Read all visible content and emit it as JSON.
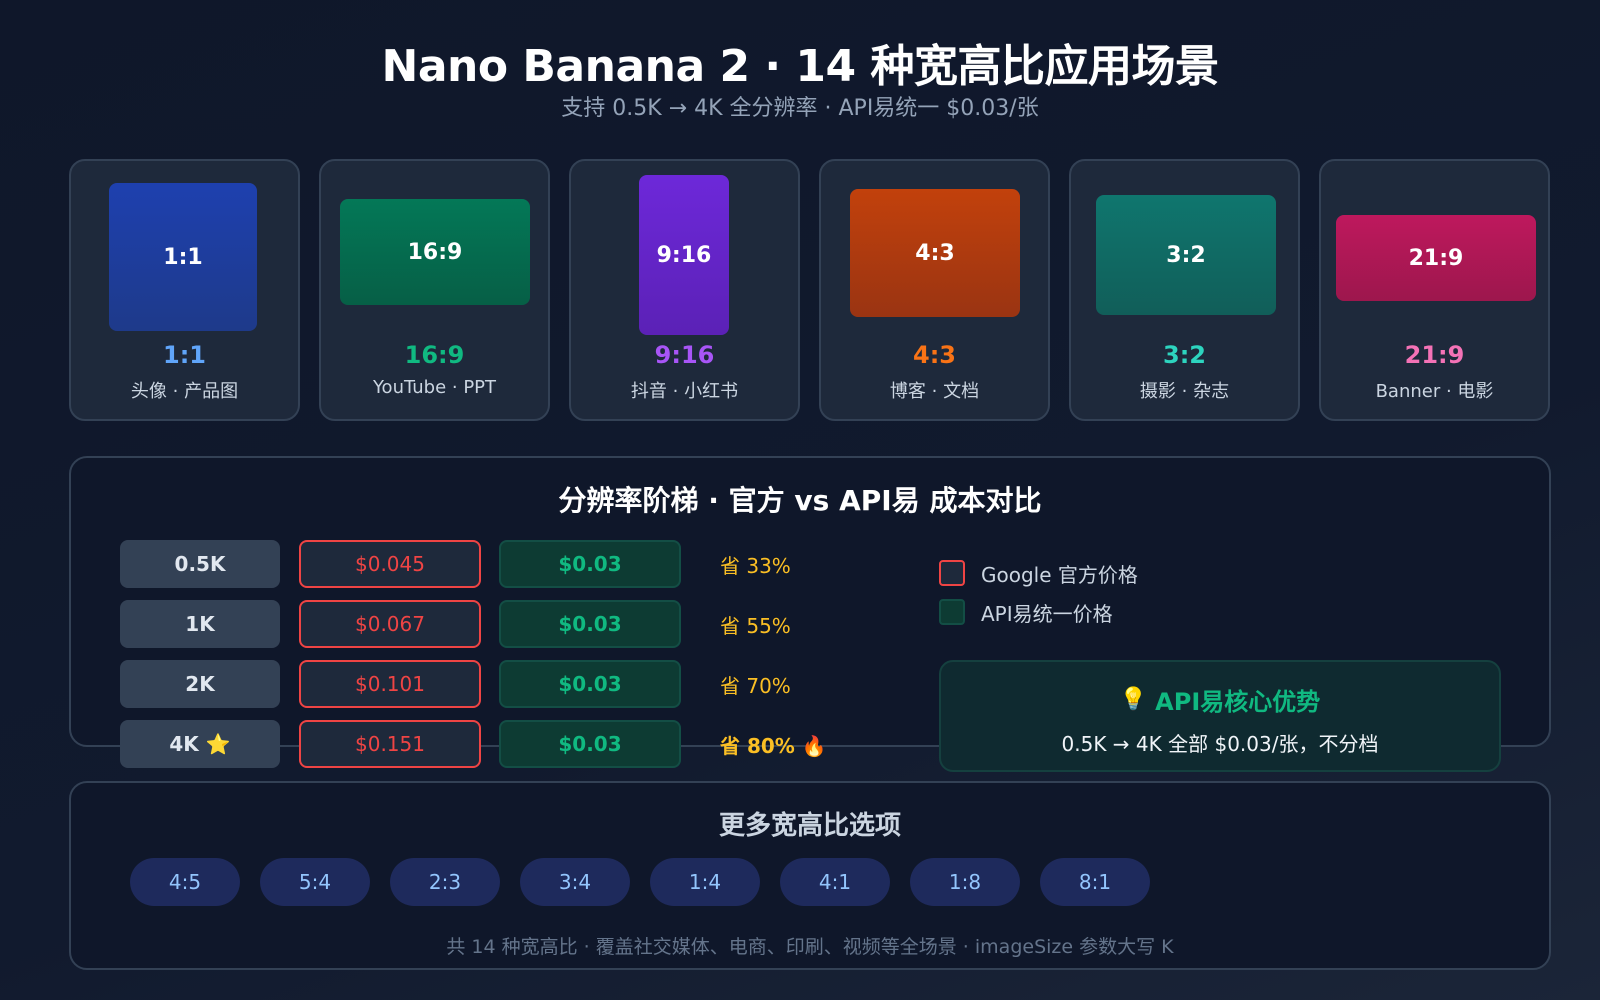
{
  "header": {
    "title": "Nano Banana 2 · 14 种宽高比应用场景",
    "subtitle": "支持 0.5K → 4K 全分辨率 · API易统一 $0.03/张"
  },
  "ratio_cards": [
    {
      "shape_label": "1:1",
      "ratio": "1:1",
      "use": "头像 · 产品图",
      "color": "#60a5fa",
      "fill": "#1e3a8a"
    },
    {
      "shape_label": "16:9",
      "ratio": "16:9",
      "use": "YouTube · PPT",
      "color": "#10b981",
      "fill": "#047857"
    },
    {
      "shape_label": "9:16",
      "ratio": "9:16",
      "use": "抖音 · 小红书",
      "color": "#a855f7",
      "fill": "#6d28d9"
    },
    {
      "shape_label": "4:3",
      "ratio": "4:3",
      "use": "博客 · 文档",
      "color": "#f97316",
      "fill": "#c2410c"
    },
    {
      "shape_label": "3:2",
      "ratio": "3:2",
      "use": "摄影 · 杂志",
      "color": "#2dd4bf",
      "fill": "#0f766e"
    },
    {
      "shape_label": "21:9",
      "ratio": "21:9",
      "use": "Banner · 电影",
      "color": "#f472b6",
      "fill": "#be185d"
    }
  ],
  "pricing": {
    "title": "分辨率阶梯 · 官方 vs API易 成本对比",
    "rows": [
      {
        "resolution": "0.5K",
        "google_price": "$0.045",
        "api_price": "$0.03",
        "saving": "省 33%"
      },
      {
        "resolution": "1K",
        "google_price": "$0.067",
        "api_price": "$0.03",
        "saving": "省 55%"
      },
      {
        "resolution": "2K",
        "google_price": "$0.101",
        "api_price": "$0.03",
        "saving": "省 70%"
      },
      {
        "resolution": "4K ⭐",
        "google_price": "$0.151",
        "api_price": "$0.03",
        "saving": "省 80% 🔥"
      }
    ],
    "legend": {
      "google": "Google 官方价格",
      "api": "API易统一价格"
    },
    "advantage": {
      "icon": "💡",
      "title": "API易核心优势",
      "text": "0.5K → 4K 全部 $0.03/张，不分档"
    }
  },
  "more_ratios": {
    "title": "更多宽高比选项",
    "chips": [
      "4:5",
      "5:4",
      "2:3",
      "3:4",
      "1:4",
      "4:1",
      "1:8",
      "8:1"
    ],
    "footer": "共 14 种宽高比 · 覆盖社交媒体、电商、印刷、视频等全场景 · imageSize 参数大写 K"
  },
  "colors": {
    "google_red": "#ef4444",
    "api_green": "#10b981",
    "saving_yellow": "#fbbf24",
    "chip_blue": "#93c5fd"
  }
}
